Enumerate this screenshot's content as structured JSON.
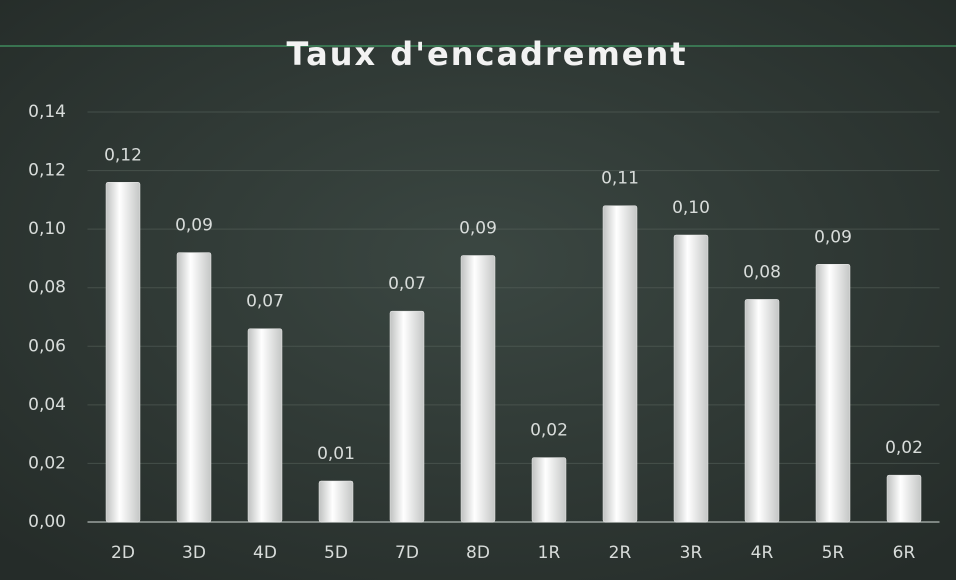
{
  "chart_data": {
    "type": "bar",
    "title": "Taux d'encadrement",
    "categories": [
      "2D",
      "3D",
      "4D",
      "5D",
      "7D",
      "8D",
      "1R",
      "2R",
      "3R",
      "4R",
      "5R",
      "6R"
    ],
    "values": [
      0.116,
      0.092,
      0.066,
      0.014,
      0.072,
      0.091,
      0.022,
      0.108,
      0.098,
      0.076,
      0.088,
      0.016
    ],
    "value_labels": [
      "0,12",
      "0,09",
      "0,07",
      "0,01",
      "0,07",
      "0,09",
      "0,02",
      "0,11",
      "0,10",
      "0,08",
      "0,09",
      "0,02"
    ],
    "color": "#ececec",
    "ylim": [
      0,
      0.14
    ],
    "yticks": [
      {
        "value": 0,
        "label": "0,00"
      },
      {
        "value": 0.02,
        "label": "0,02"
      },
      {
        "value": 0.04,
        "label": "0,04"
      },
      {
        "value": 0.06,
        "label": "0,06"
      },
      {
        "value": 0.08,
        "label": "0,08"
      },
      {
        "value": 0.1,
        "label": "0,10"
      },
      {
        "value": 0.12,
        "label": "0,12"
      },
      {
        "value": 0.14,
        "label": "0,14"
      }
    ],
    "grid": true
  }
}
